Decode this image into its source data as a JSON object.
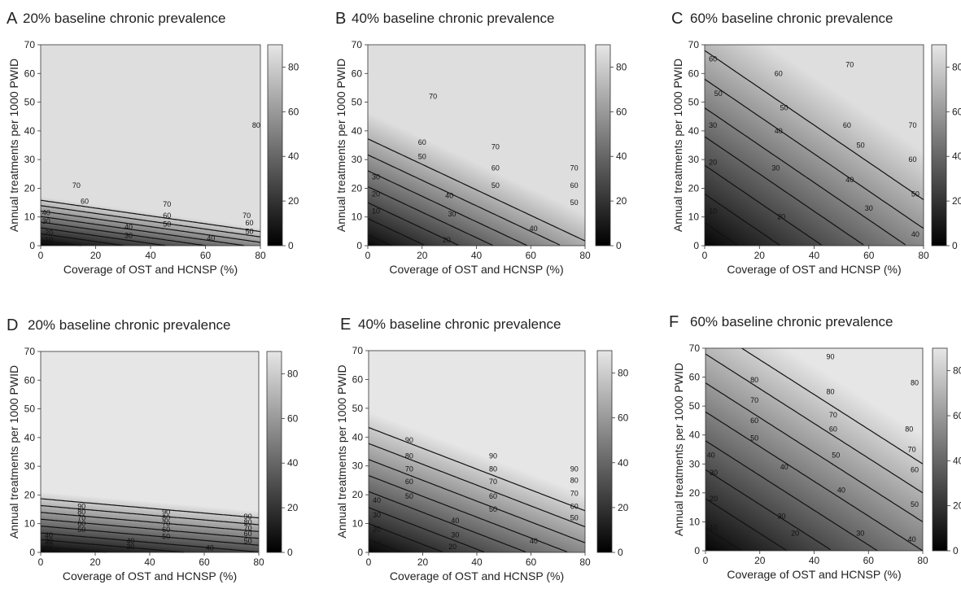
{
  "chart_data": [
    {
      "panel_letter": "A",
      "type": "heatmap",
      "title": "20% baseline chronic prevalence",
      "xlabel": "Coverage of OST and HCNSP (%)",
      "ylabel": "Annual treatments per 1000 PWID",
      "xlim": [
        0,
        80
      ],
      "ylim": [
        0,
        70
      ],
      "x_ticks": [
        0,
        20,
        40,
        60,
        80
      ],
      "y_ticks": [
        0,
        10,
        20,
        30,
        40,
        50,
        60,
        70
      ],
      "colorbar_ticks": [
        0,
        20,
        40,
        60,
        80
      ],
      "colorbar_range": [
        0,
        90
      ],
      "colormap": [
        "#000000",
        "#e6e6e6"
      ],
      "surface": {
        "base": 1.5,
        "bx": 0.45,
        "by": 3.3,
        "p": 1.1,
        "max_value": 87
      },
      "contours": [
        {
          "level": 70,
          "labels": [
            [
              13,
              21
            ],
            [
              46,
              14.5
            ],
            [
              75,
              10.5
            ]
          ]
        },
        {
          "level": 60,
          "labels": [
            [
              16,
              15.5
            ],
            [
              46,
              10.5
            ],
            [
              76,
              8
            ]
          ]
        },
        {
          "level": 50,
          "labels": [
            [
              46,
              7.5
            ],
            [
              76,
              5
            ]
          ]
        },
        {
          "level": 40,
          "labels": [
            [
              2,
              11.5
            ],
            [
              32,
              6.5
            ],
            [
              62,
              2.5
            ]
          ]
        },
        {
          "level": 30,
          "labels": [
            [
              2,
              8.5
            ],
            [
              32,
              3.5
            ]
          ]
        },
        {
          "level": 20,
          "labels": [
            [
              3,
              4.5
            ]
          ]
        },
        {
          "level": 10,
          "labels": [
            [
              3,
              2
            ]
          ]
        },
        {
          "level": 80,
          "labels": [
            [
              78.5,
              42
            ]
          ]
        }
      ]
    },
    {
      "panel_letter": "B",
      "type": "heatmap",
      "title": "40% baseline chronic prevalence",
      "xlabel": "Coverage of OST and HCNSP (%)",
      "ylabel": "Annual treatments per 1000 PWID",
      "xlim": [
        0,
        80
      ],
      "ylim": [
        0,
        70
      ],
      "x_ticks": [
        0,
        20,
        40,
        60,
        80
      ],
      "y_ticks": [
        0,
        10,
        20,
        30,
        40,
        50,
        60,
        70
      ],
      "colorbar_ticks": [
        0,
        20,
        40,
        60,
        80
      ],
      "colorbar_range": [
        0,
        90
      ],
      "colormap": [
        "#000000",
        "#e6e6e6"
      ],
      "surface": {
        "base": 3,
        "bx": 0.8,
        "by": 1.8,
        "p": 1.0,
        "max_value": 87
      },
      "contours": [
        {
          "level": 70,
          "labels": [
            [
              24,
              52
            ],
            [
              47,
              34.5
            ],
            [
              76,
              27
            ]
          ]
        },
        {
          "level": 60,
          "labels": [
            [
              20,
              36
            ],
            [
              47,
              27
            ],
            [
              76,
              21
            ]
          ]
        },
        {
          "level": 50,
          "labels": [
            [
              20,
              31
            ],
            [
              47,
              21
            ],
            [
              76,
              15
            ]
          ]
        },
        {
          "level": 40,
          "labels": [
            [
              30,
              17.5
            ],
            [
              61,
              6
            ]
          ]
        },
        {
          "level": 30,
          "labels": [
            [
              3,
              24
            ],
            [
              31,
              11
            ]
          ]
        },
        {
          "level": 20,
          "labels": [
            [
              3,
              18
            ],
            [
              29,
              2
            ]
          ]
        },
        {
          "level": 10,
          "labels": [
            [
              3,
              12
            ]
          ]
        }
      ]
    },
    {
      "panel_letter": "C",
      "type": "heatmap",
      "title": "60% baseline chronic prevalence",
      "xlabel": "Coverage of OST and HCNSP (%)",
      "ylabel": "Annual treatments per 1000 PWID",
      "xlim": [
        0,
        80
      ],
      "ylim": [
        0,
        70
      ],
      "x_ticks": [
        0,
        20,
        40,
        60,
        80
      ],
      "y_ticks": [
        0,
        10,
        20,
        30,
        40,
        50,
        60,
        70
      ],
      "colorbar_ticks": [
        0,
        20,
        40,
        60,
        80
      ],
      "colorbar_range": [
        0,
        90
      ],
      "colormap": [
        "#000000",
        "#e6e6e6"
      ],
      "surface": {
        "base": 2,
        "bx": 0.65,
        "by": 1.0,
        "p": 1.0,
        "max_value": 87
      },
      "contours": [
        {
          "level": 60,
          "labels": [
            [
              3,
              65
            ],
            [
              27,
              60
            ],
            [
              52,
              42
            ]
          ]
        },
        {
          "level": 50,
          "labels": [
            [
              5,
              53
            ],
            [
              29,
              48
            ],
            [
              57,
              35
            ]
          ]
        },
        {
          "level": 40,
          "labels": [
            [
              27,
              40
            ],
            [
              53,
              23
            ]
          ]
        },
        {
          "level": 30,
          "labels": [
            [
              3,
              42
            ],
            [
              26,
              27
            ],
            [
              60,
              13
            ]
          ]
        },
        {
          "level": 20,
          "labels": [
            [
              3,
              29
            ],
            [
              28,
              10
            ]
          ]
        },
        {
          "level": 10,
          "labels": [
            [
              3,
              12
            ]
          ]
        },
        {
          "level": 70,
          "labels": [
            [
              53,
              63
            ],
            [
              76,
              42
            ]
          ]
        },
        {
          "level": 60,
          "labels": [
            [
              76,
              30
            ]
          ]
        },
        {
          "level": 50,
          "labels": [
            [
              77,
              18
            ]
          ]
        },
        {
          "level": 40,
          "labels": [
            [
              77,
              4
            ]
          ]
        }
      ]
    },
    {
      "panel_letter": "D",
      "type": "heatmap",
      "title": "20% baseline chronic prevalence",
      "xlabel": "Coverage of OST and HCNSP (%)",
      "ylabel": "Annual treatments per 1000 PWID",
      "xlim": [
        0,
        80
      ],
      "ylim": [
        0,
        70
      ],
      "x_ticks": [
        0,
        20,
        40,
        60,
        80
      ],
      "y_ticks": [
        0,
        10,
        20,
        30,
        40,
        50,
        60,
        70
      ],
      "colorbar_ticks": [
        0,
        20,
        40,
        60,
        80
      ],
      "colorbar_range": [
        0,
        90
      ],
      "colormap": [
        "#000000",
        "#e6e6e6"
      ],
      "surface": {
        "base": 1.5,
        "bx": 0.35,
        "by": 4.2,
        "p": 1.0,
        "max_value": 90
      },
      "contours": [
        {
          "level": 90,
          "labels": [
            [
              15,
              16
            ],
            [
              46,
              14
            ],
            [
              76,
              12.5
            ]
          ]
        },
        {
          "level": 80,
          "labels": [
            [
              15,
              14
            ],
            [
              46,
              12
            ],
            [
              76,
              10.5
            ]
          ]
        },
        {
          "level": 70,
          "labels": [
            [
              15,
              12
            ],
            [
              46,
              10
            ],
            [
              76,
              8.5
            ]
          ]
        },
        {
          "level": 60,
          "labels": [
            [
              15,
              10
            ],
            [
              46,
              8
            ],
            [
              76,
              6.5
            ]
          ]
        },
        {
          "level": 50,
          "labels": [
            [
              15,
              8
            ],
            [
              46,
              5.5
            ],
            [
              76,
              4
            ]
          ]
        },
        {
          "level": 40,
          "labels": [
            [
              3,
              6
            ],
            [
              33,
              4
            ]
          ]
        },
        {
          "level": 30,
          "labels": [
            [
              3,
              4
            ],
            [
              33,
              2
            ]
          ]
        },
        {
          "level": 20,
          "labels": [
            [
              3,
              2.5
            ]
          ]
        },
        {
          "level": 10,
          "labels": [
            [
              3,
              1
            ]
          ]
        },
        {
          "level": 40,
          "labels": [
            [
              62,
              1.5
            ]
          ]
        }
      ]
    },
    {
      "panel_letter": "E",
      "type": "heatmap",
      "title": "40% baseline chronic prevalence",
      "xlabel": "Coverage of OST and HCNSP (%)",
      "ylabel": "Annual treatments per 1000 PWID",
      "xlim": [
        0,
        80
      ],
      "ylim": [
        0,
        70
      ],
      "x_ticks": [
        0,
        20,
        40,
        60,
        80
      ],
      "y_ticks": [
        0,
        10,
        20,
        30,
        40,
        50,
        60,
        70
      ],
      "colorbar_ticks": [
        0,
        20,
        40,
        60,
        80
      ],
      "colorbar_range": [
        0,
        90
      ],
      "colormap": [
        "#000000",
        "#e6e6e6"
      ],
      "surface": {
        "base": 2,
        "bx": 0.65,
        "by": 1.8,
        "p": 1.0,
        "max_value": 90
      },
      "contours": [
        {
          "level": 90,
          "labels": [
            [
              15,
              39
            ],
            [
              46,
              33.5
            ],
            [
              76,
              29
            ]
          ]
        },
        {
          "level": 80,
          "labels": [
            [
              15,
              33.5
            ],
            [
              46,
              29
            ],
            [
              76,
              25
            ]
          ]
        },
        {
          "level": 70,
          "labels": [
            [
              15,
              29
            ],
            [
              46,
              24.5
            ],
            [
              76,
              20.5
            ]
          ]
        },
        {
          "level": 60,
          "labels": [
            [
              15,
              24.5
            ],
            [
              46,
              19.5
            ],
            [
              76,
              16
            ]
          ]
        },
        {
          "level": 50,
          "labels": [
            [
              15,
              19.5
            ],
            [
              46,
              15
            ],
            [
              76,
              12
            ]
          ]
        },
        {
          "level": 40,
          "labels": [
            [
              3,
              18
            ],
            [
              32,
              11
            ]
          ]
        },
        {
          "level": 30,
          "labels": [
            [
              3,
              13
            ],
            [
              32,
              6
            ]
          ]
        },
        {
          "level": 20,
          "labels": [
            [
              3,
              8
            ],
            [
              31,
              2
            ]
          ]
        },
        {
          "level": 10,
          "labels": [
            [
              3,
              3
            ]
          ]
        },
        {
          "level": 40,
          "labels": [
            [
              61,
              4
            ]
          ]
        }
      ]
    },
    {
      "panel_letter": "F",
      "type": "heatmap",
      "title": "60% baseline chronic prevalence",
      "xlabel": "Coverage of OST and HCNSP (%)",
      "ylabel": "Annual treatments per 1000 PWID",
      "xlim": [
        0,
        80
      ],
      "ylim": [
        0,
        70
      ],
      "x_ticks": [
        0,
        20,
        40,
        60,
        80
      ],
      "y_ticks": [
        0,
        10,
        20,
        30,
        40,
        50,
        60,
        70
      ],
      "colorbar_ticks": [
        0,
        20,
        40,
        60,
        80
      ],
      "colorbar_range": [
        0,
        90
      ],
      "colormap": [
        "#000000",
        "#e6e6e6"
      ],
      "surface": {
        "base": 2,
        "bx": 0.6,
        "by": 1.0,
        "p": 1.0,
        "max_value": 90
      },
      "contours": [
        {
          "level": 80,
          "labels": [
            [
              18,
              59
            ],
            [
              46,
              55
            ],
            [
              75,
              42
            ]
          ]
        },
        {
          "level": 70,
          "labels": [
            [
              18,
              52
            ],
            [
              47,
              47
            ],
            [
              76,
              35
            ]
          ]
        },
        {
          "level": 60,
          "labels": [
            [
              18,
              45
            ],
            [
              47,
              42
            ],
            [
              77,
              28
            ]
          ]
        },
        {
          "level": 50,
          "labels": [
            [
              18,
              39
            ],
            [
              48,
              33
            ]
          ]
        },
        {
          "level": 40,
          "labels": [
            [
              2,
              33
            ],
            [
              29,
              29
            ],
            [
              50,
              21
            ]
          ]
        },
        {
          "level": 30,
          "labels": [
            [
              3,
              27
            ],
            [
              28,
              12
            ]
          ]
        },
        {
          "level": 20,
          "labels": [
            [
              3,
              18
            ],
            [
              33,
              6
            ]
          ]
        },
        {
          "level": 10,
          "labels": [
            [
              3,
              8
            ]
          ]
        },
        {
          "level": 90,
          "labels": [
            [
              46,
              67
            ]
          ]
        },
        {
          "level": 80,
          "labels": [
            [
              77,
              58
            ]
          ]
        },
        {
          "level": 50,
          "labels": [
            [
              77,
              16
            ]
          ]
        },
        {
          "level": 40,
          "labels": [
            [
              76,
              4
            ]
          ]
        },
        {
          "level": 30,
          "labels": [
            [
              57,
              6
            ]
          ]
        }
      ]
    }
  ]
}
